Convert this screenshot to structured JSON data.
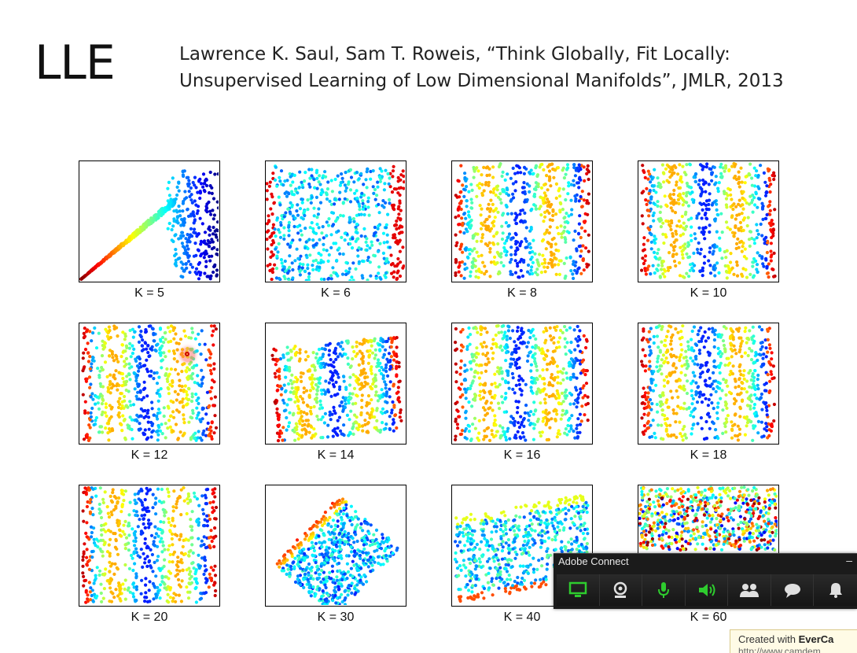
{
  "slide": {
    "title": "LLE",
    "citation_line1": "Lawrence K. Saul, Sam T. Roweis, “Think Globally, Fit Locally:",
    "citation_line2": "Unsupervised Learning of Low Dimensional Manifolds”, JMLR, 2013"
  },
  "panels": [
    {
      "label": "K = 5",
      "pattern": "collapsed"
    },
    {
      "label": "K = 6",
      "pattern": "distorted"
    },
    {
      "label": "K = 8",
      "pattern": "stripes"
    },
    {
      "label": "K = 10",
      "pattern": "stripes"
    },
    {
      "label": "K = 12",
      "pattern": "stripes"
    },
    {
      "label": "K = 14",
      "pattern": "tilted"
    },
    {
      "label": "K = 16",
      "pattern": "stripes"
    },
    {
      "label": "K = 18",
      "pattern": "stripes"
    },
    {
      "label": "K = 20",
      "pattern": "stripes"
    },
    {
      "label": "K = 30",
      "pattern": "rotated"
    },
    {
      "label": "K = 40",
      "pattern": "folded"
    },
    {
      "label": "K = 60",
      "pattern": "horizontal"
    }
  ],
  "colors": {
    "jet": [
      "#00007f",
      "#0000ff",
      "#0080ff",
      "#00ffff",
      "#80ff80",
      "#ffff00",
      "#ff8000",
      "#ff0000",
      "#7f0000"
    ]
  },
  "adobe_connect": {
    "title": "Adobe Connect",
    "minimize": "–",
    "buttons": [
      {
        "name": "screen-share-icon",
        "color": "#2ecc2e"
      },
      {
        "name": "webcam-icon",
        "color": "#e0e0e0"
      },
      {
        "name": "microphone-icon",
        "color": "#2ecc2e"
      },
      {
        "name": "speaker-icon",
        "color": "#2ecc2e"
      },
      {
        "name": "attendees-icon",
        "color": "#e0e0e0"
      },
      {
        "name": "chat-icon",
        "color": "#e0e0e0"
      },
      {
        "name": "notifications-icon",
        "color": "#e0e0e0"
      }
    ]
  },
  "watermark": {
    "prefix": "Created with ",
    "brand": "EverCa",
    "url": "http://www.camdem"
  }
}
